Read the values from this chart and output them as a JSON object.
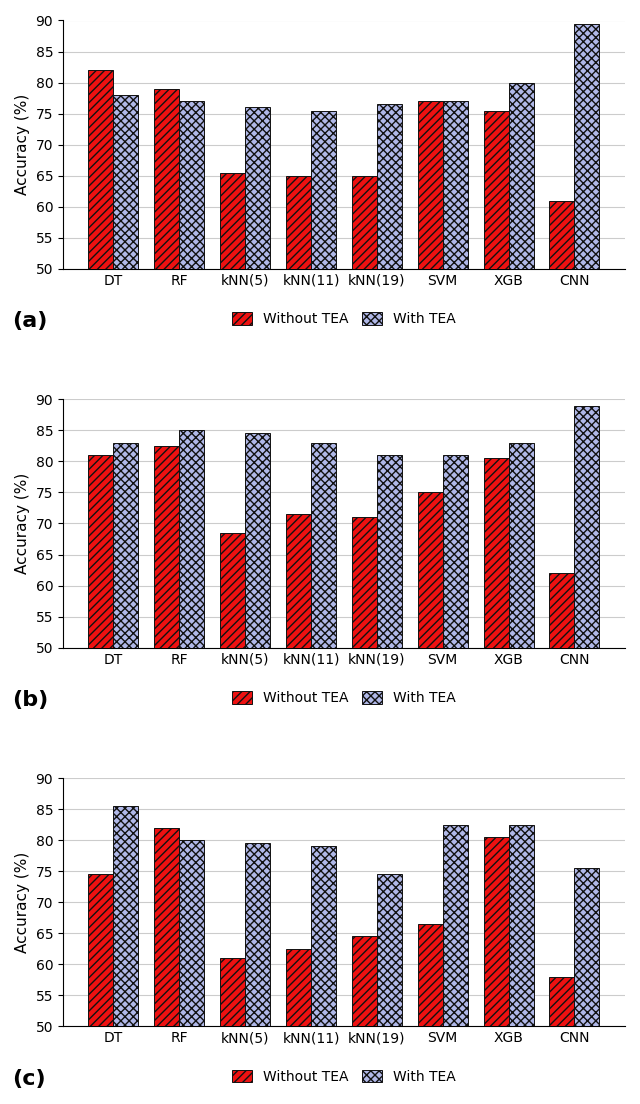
{
  "categories": [
    "DT",
    "RF",
    "kNN(5)",
    "kNN(11)",
    "kNN(19)",
    "SVM",
    "XGB",
    "CNN"
  ],
  "subplot_labels": [
    "(a)",
    "(b)",
    "(c)"
  ],
  "ylabel": "Accuracy (%)",
  "ylim": [
    50,
    90
  ],
  "yticks": [
    50,
    55,
    60,
    65,
    70,
    75,
    80,
    85,
    90
  ],
  "without_tea": [
    [
      82.0,
      79.0,
      65.5,
      65.0,
      65.0,
      77.0,
      75.5,
      61.0
    ],
    [
      81.0,
      82.5,
      68.5,
      71.5,
      71.0,
      75.0,
      80.5,
      62.0
    ],
    [
      74.5,
      82.0,
      61.0,
      62.5,
      64.5,
      66.5,
      80.5,
      58.0
    ]
  ],
  "with_tea": [
    [
      78.0,
      77.0,
      76.0,
      75.5,
      76.5,
      77.0,
      80.0,
      89.5
    ],
    [
      83.0,
      85.0,
      84.5,
      83.0,
      81.0,
      81.0,
      83.0,
      89.0
    ],
    [
      85.5,
      80.0,
      79.5,
      79.0,
      74.5,
      82.5,
      82.5,
      75.5
    ]
  ],
  "color_without": "#ee1111",
  "color_with": "#b0b8e8",
  "bar_width": 0.38,
  "legend_without": "Without TEA",
  "legend_with": "With TEA",
  "background_color": "#ffffff",
  "hatch_without": "////",
  "hatch_with": "xxxx",
  "edgecolor": "#111111",
  "grid_color": "#cccccc",
  "label_fontsize": 16,
  "tick_fontsize": 10,
  "ylabel_fontsize": 11,
  "legend_fontsize": 10
}
